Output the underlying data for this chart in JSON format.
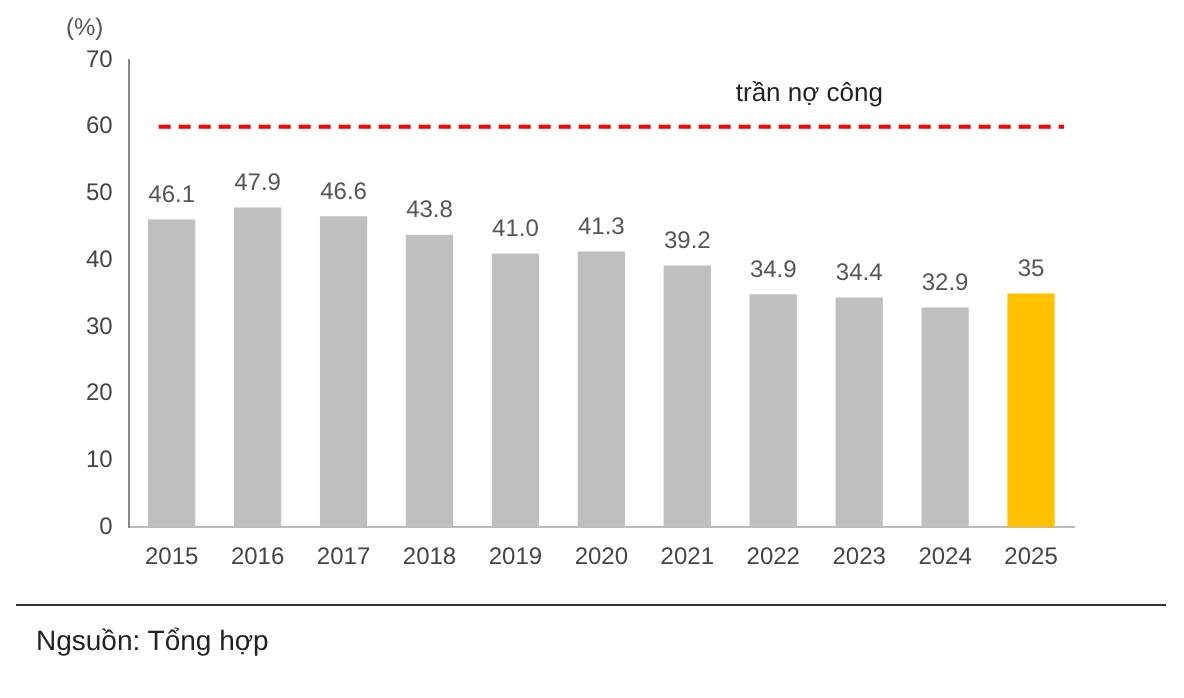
{
  "chart_data": {
    "type": "bar",
    "ylabel": "(%)",
    "categories": [
      "2015",
      "2016",
      "2017",
      "2018",
      "2019",
      "2020",
      "2021",
      "2022",
      "2023",
      "2024",
      "2025"
    ],
    "values": [
      46.1,
      47.9,
      46.6,
      43.8,
      41.0,
      41.3,
      39.2,
      34.9,
      34.4,
      32.9,
      35
    ],
    "colors": [
      "#bfbfbf",
      "#bfbfbf",
      "#bfbfbf",
      "#bfbfbf",
      "#bfbfbf",
      "#bfbfbf",
      "#bfbfbf",
      "#bfbfbf",
      "#bfbfbf",
      "#bfbfbf",
      "#ffc000"
    ],
    "value_labels": [
      "46.1",
      "47.9",
      "46.6",
      "43.8",
      "41.0",
      "41.3",
      "39.2",
      "34.9",
      "34.4",
      "32.9",
      "35"
    ],
    "ylim": [
      0,
      70
    ],
    "yticks": [
      0,
      10,
      20,
      30,
      40,
      50,
      60,
      70
    ],
    "grid": false,
    "legend": false,
    "ref_lines": [
      {
        "axis": "y",
        "value": 60,
        "label": "trần nợ công",
        "color": "#ff0000",
        "line_style": "dashed"
      }
    ],
    "annotations": [
      "Ngsuồn: Tổng hợp"
    ]
  }
}
